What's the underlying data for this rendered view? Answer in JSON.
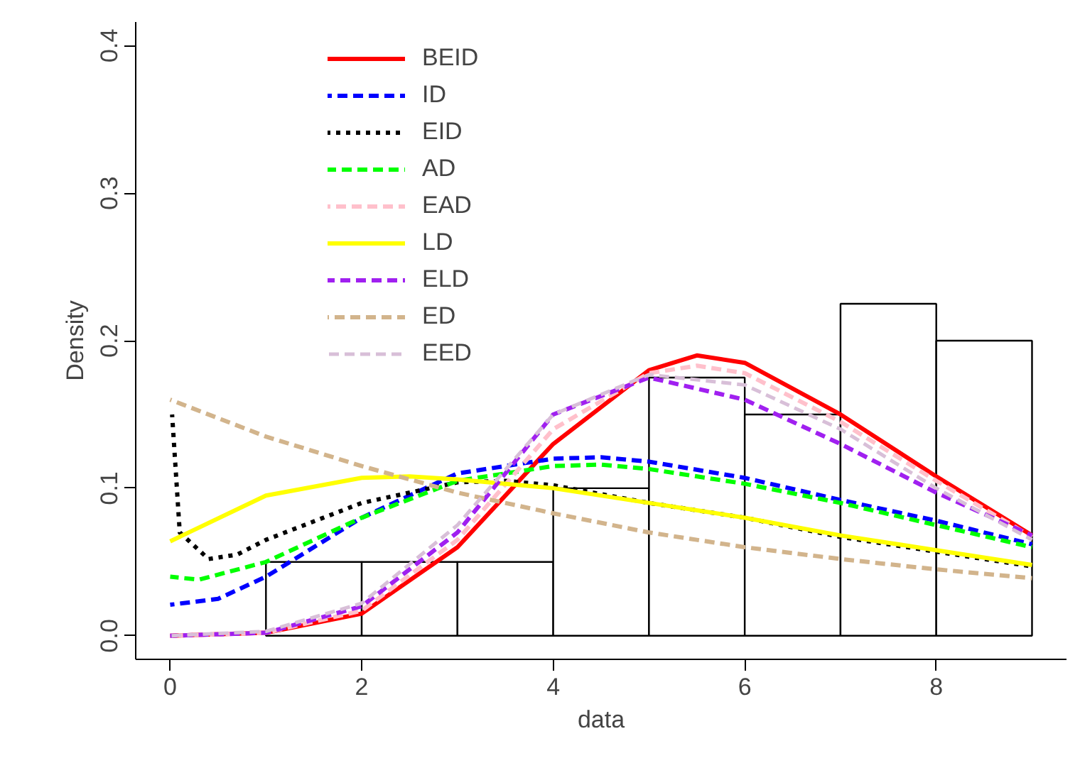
{
  "chart_data": {
    "type": "histogram",
    "xlabel": "data",
    "ylabel": "Density",
    "bins": [
      1,
      2,
      3,
      4,
      5,
      6,
      7,
      8,
      9
    ],
    "values": [
      0.05,
      0.05,
      0.05,
      0.1,
      0.175,
      0.15,
      0.225,
      0.2
    ],
    "color": "#ffffff",
    "xlim": [
      -0.36,
      9.36
    ],
    "ylim": [
      -0.016,
      0.416
    ],
    "xticks": [
      0,
      2,
      4,
      6,
      8
    ],
    "yticks": [
      {
        "value": 0,
        "label": "0.0"
      },
      {
        "value": 0.1,
        "label": "0.1"
      },
      {
        "value": 0.2,
        "label": "0.2"
      },
      {
        "value": 0.3,
        "label": "0.3"
      },
      {
        "value": 0.4,
        "label": "0.4"
      }
    ],
    "legend": "top left",
    "grid": false,
    "series": [
      {
        "name": "BEID",
        "type": "line",
        "color": "#ff0000",
        "line_style": "solid",
        "x": [
          0,
          1,
          2,
          3,
          4,
          5,
          5.5,
          6,
          7,
          8,
          9
        ],
        "values": [
          0,
          0.002,
          0.015,
          0.06,
          0.13,
          0.18,
          0.19,
          0.185,
          0.15,
          0.108,
          0.068
        ]
      },
      {
        "name": "ID",
        "type": "line",
        "color": "#0000ff",
        "line_style": "dashed",
        "x": [
          0,
          0.5,
          1,
          2,
          3,
          4,
          4.5,
          5,
          6,
          7,
          8,
          9
        ],
        "values": [
          0.021,
          0.025,
          0.04,
          0.08,
          0.11,
          0.12,
          0.121,
          0.118,
          0.107,
          0.092,
          0.078,
          0.062
        ]
      },
      {
        "name": "EID",
        "type": "line",
        "color": "#000000",
        "line_style": "dotted",
        "x": [
          0.02,
          0.1,
          0.4,
          0.7,
          1,
          2,
          3,
          3.5,
          4,
          5,
          6,
          7,
          8,
          9
        ],
        "values": [
          0.15,
          0.07,
          0.052,
          0.055,
          0.065,
          0.09,
          0.104,
          0.105,
          0.102,
          0.09,
          0.08,
          0.067,
          0.057,
          0.047
        ]
      },
      {
        "name": "AD",
        "type": "line",
        "color": "#00ff00",
        "line_style": "dashed",
        "x": [
          0,
          0.3,
          1,
          2,
          3,
          4,
          4.5,
          5,
          6,
          7,
          8,
          9
        ],
        "values": [
          0.04,
          0.038,
          0.05,
          0.08,
          0.105,
          0.115,
          0.116,
          0.113,
          0.103,
          0.09,
          0.075,
          0.06
        ]
      },
      {
        "name": "EAD",
        "type": "line",
        "color": "#ffc0cb",
        "line_style": "dashed",
        "x": [
          0,
          1,
          2,
          3,
          4,
          5,
          5.5,
          6,
          7,
          8,
          9
        ],
        "values": [
          0,
          0.002,
          0.017,
          0.065,
          0.14,
          0.178,
          0.183,
          0.178,
          0.145,
          0.105,
          0.067
        ]
      },
      {
        "name": "LD",
        "type": "line",
        "color": "#ffff00",
        "line_style": "solid",
        "x": [
          0,
          1,
          2,
          2.5,
          3,
          4,
          5,
          6,
          7,
          8,
          9
        ],
        "values": [
          0.064,
          0.095,
          0.107,
          0.108,
          0.106,
          0.1,
          0.09,
          0.08,
          0.068,
          0.058,
          0.048
        ]
      },
      {
        "name": "ELD",
        "type": "line",
        "color": "#a020f0",
        "line_style": "dashed",
        "x": [
          0,
          1,
          2,
          3,
          4,
          5,
          6,
          7,
          8,
          9
        ],
        "values": [
          0,
          0.002,
          0.02,
          0.07,
          0.15,
          0.175,
          0.16,
          0.13,
          0.097,
          0.068
        ]
      },
      {
        "name": "ED",
        "type": "line",
        "color": "#d2b48c",
        "line_style": "dashed",
        "x": [
          0,
          1,
          2,
          3,
          4,
          5,
          6,
          7,
          8,
          9
        ],
        "values": [
          0.16,
          0.135,
          0.115,
          0.097,
          0.083,
          0.07,
          0.06,
          0.052,
          0.045,
          0.039
        ]
      },
      {
        "name": "EED",
        "type": "line",
        "color": "#d8bfd8",
        "line_style": "dashed",
        "x": [
          0,
          1,
          2,
          3,
          4,
          5,
          6,
          7,
          8,
          9
        ],
        "values": [
          0,
          0.003,
          0.022,
          0.075,
          0.15,
          0.177,
          0.17,
          0.14,
          0.1,
          0.065
        ]
      }
    ]
  }
}
